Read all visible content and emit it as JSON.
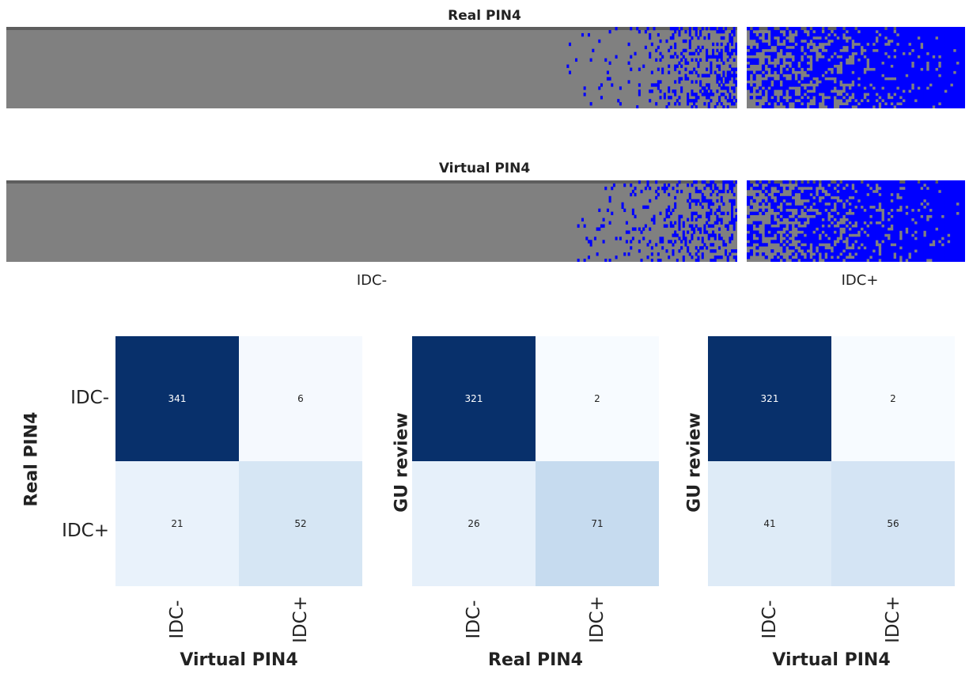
{
  "chart_data": [
    {
      "type": "heatmap",
      "title": "Real PIN4",
      "groups": [
        "IDC-",
        "IDC+"
      ],
      "colors": {
        "negative": "#808080",
        "positive": "#0000ff"
      }
    },
    {
      "type": "heatmap",
      "title": "Virtual PIN4",
      "groups": [
        "IDC-",
        "IDC+"
      ],
      "colors": {
        "negative": "#808080",
        "positive": "#0000ff"
      }
    },
    {
      "type": "heatmap",
      "xlabel": "Virtual PIN4",
      "ylabel": "Real PIN4",
      "x_categories": [
        "IDC-",
        "IDC+"
      ],
      "y_categories": [
        "IDC-",
        "IDC+"
      ],
      "values": [
        [
          341,
          6
        ],
        [
          21,
          52
        ]
      ]
    },
    {
      "type": "heatmap",
      "xlabel": "Real PIN4",
      "ylabel": "GU review",
      "x_categories": [
        "IDC-",
        "IDC+"
      ],
      "y_categories": [
        "IDC-",
        "IDC+"
      ],
      "values": [
        [
          321,
          2
        ],
        [
          26,
          71
        ]
      ]
    },
    {
      "type": "heatmap",
      "xlabel": "Virtual PIN4",
      "ylabel": "GU review",
      "x_categories": [
        "IDC-",
        "IDC+"
      ],
      "y_categories": [
        "IDC-",
        "IDC+"
      ],
      "values": [
        [
          321,
          2
        ],
        [
          41,
          56
        ]
      ]
    }
  ],
  "strip_labels": {
    "left": "IDC-",
    "right": "IDC+"
  }
}
